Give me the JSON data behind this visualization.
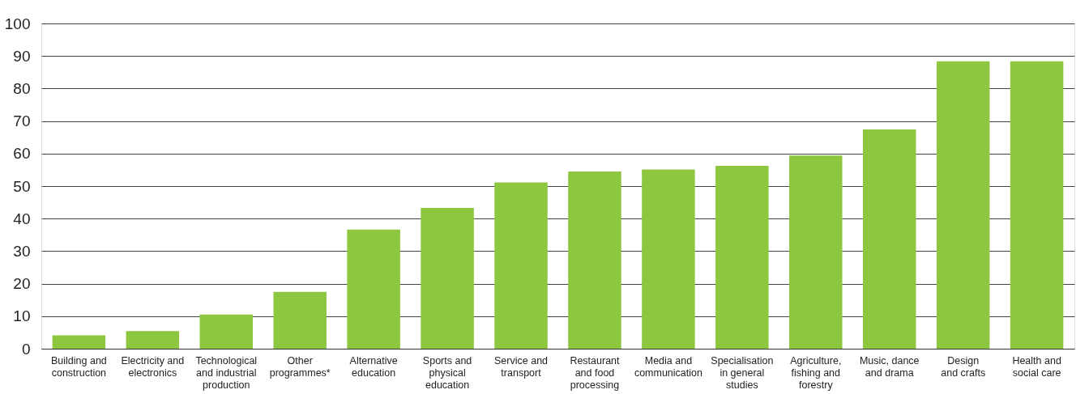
{
  "chart_data": {
    "type": "bar",
    "categories": [
      "Building and\nconstruction",
      "Electricity and\nelectronics",
      "Technological\nand industrial\nproduction",
      "Other\nprogrammes*",
      "Alternative\neducation",
      "Sports and\nphysical\neducation",
      "Service and\ntransport",
      "Restaurant\nand food\nprocessing",
      "Media and\ncommunication",
      "Specialisation\nin general\nstudies",
      "Agriculture,\nfishing and\nforestry",
      "Music, dance\nand drama",
      "Design\nand crafts",
      "Health and\nsocial care"
    ],
    "values": [
      4.1,
      5.4,
      10.5,
      17.5,
      36.6,
      43.3,
      51.1,
      54.5,
      55.1,
      56.2,
      59.4,
      67.4,
      88.4,
      88.4
    ],
    "color": "#8dc63f",
    "ylim": [
      0,
      100
    ],
    "yticks": [
      0,
      10,
      20,
      30,
      40,
      50,
      60,
      70,
      80,
      90,
      100
    ],
    "grid": "y"
  }
}
